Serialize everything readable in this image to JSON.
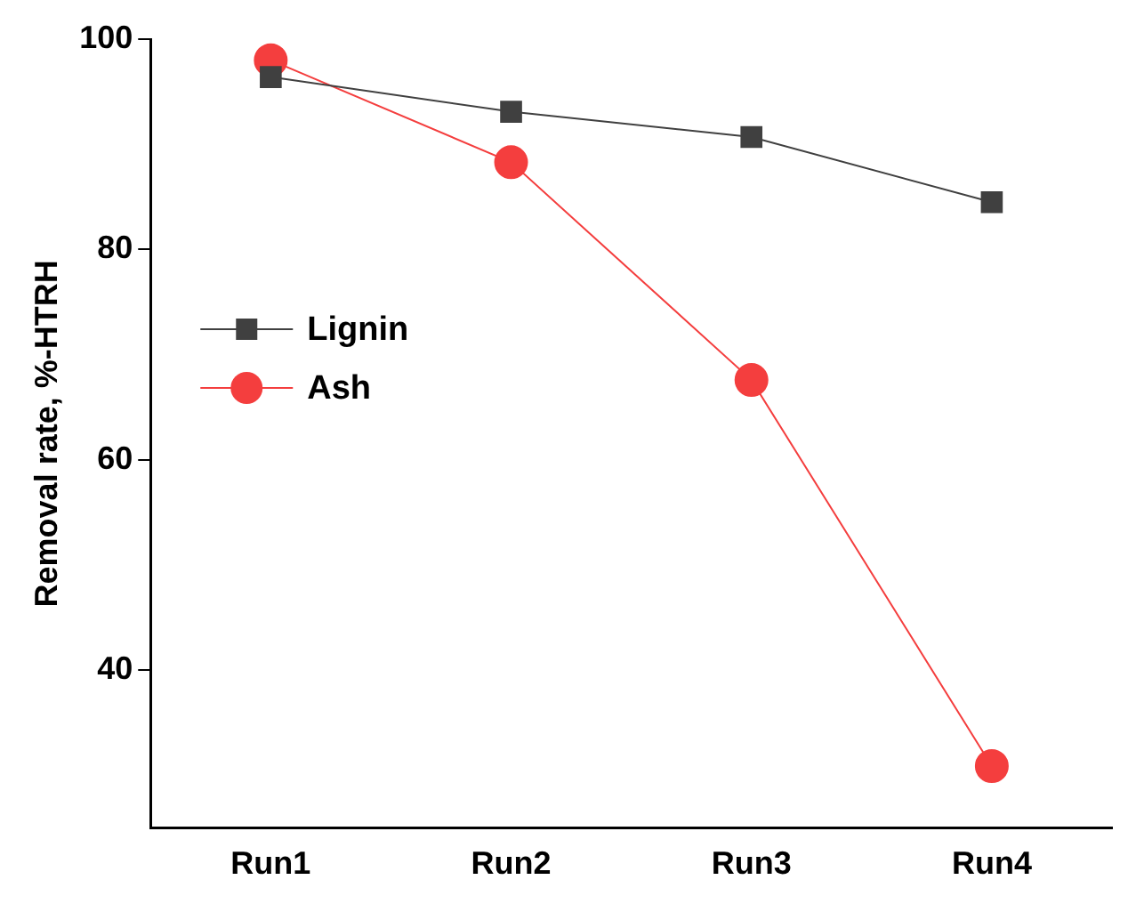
{
  "chart_data": {
    "type": "line",
    "ylabel": "Removal rate, %-HTRH",
    "categories": [
      "Run1",
      "Run2",
      "Run3",
      "Run4"
    ],
    "ylim": [
      25,
      100
    ],
    "yticks": [
      40,
      60,
      80,
      100
    ],
    "grid": false,
    "legend": "top left",
    "line_style": "solid",
    "series": [
      {
        "name": "Lignin",
        "color": "#404040",
        "marker": "square",
        "values": [
          96.4,
          93.1,
          90.7,
          84.5
        ]
      },
      {
        "name": "Ash",
        "color": "#f43e3e",
        "marker": "circle",
        "values": [
          98.0,
          88.3,
          67.6,
          30.9
        ]
      }
    ]
  }
}
